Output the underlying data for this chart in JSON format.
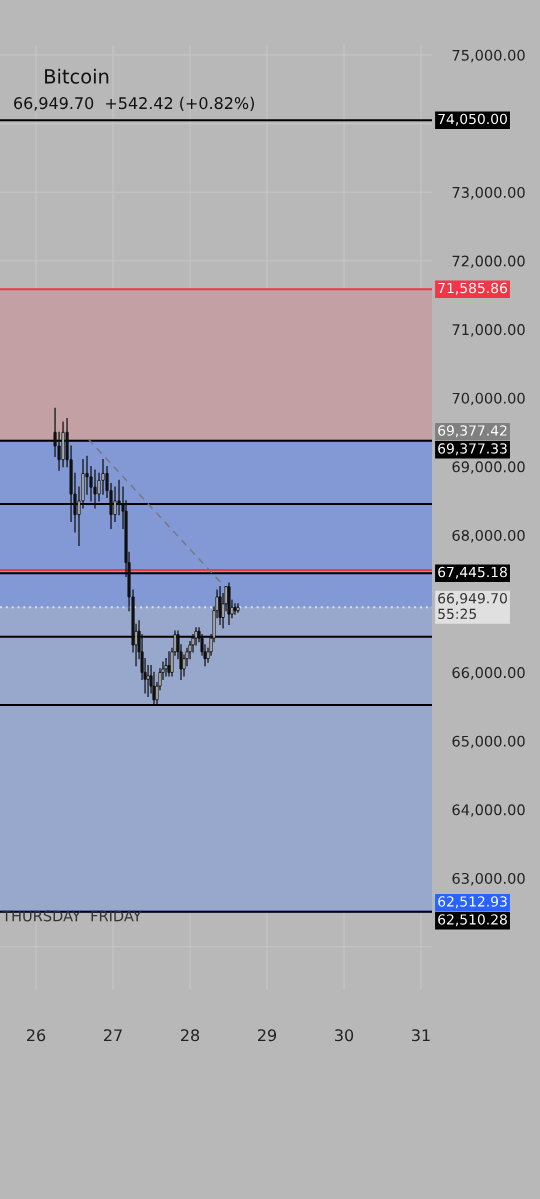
{
  "chart_data": {
    "type": "candlestick",
    "title": "Bitcoin",
    "subtitle": "66,949.70  +542.42 (+0.82%)",
    "x": [
      26.247,
      26.299,
      26.351,
      26.403,
      26.455,
      26.506,
      26.558,
      26.61,
      26.662,
      26.714,
      26.766,
      26.818,
      26.87,
      26.922,
      26.974,
      27.026,
      27.078,
      27.13,
      27.169,
      27.208,
      27.26,
      27.299,
      27.338,
      27.377,
      27.416,
      27.455,
      27.494,
      27.532,
      27.571,
      27.61,
      27.649,
      27.688,
      27.727,
      27.766,
      27.805,
      27.844,
      27.883,
      27.922,
      27.961,
      28.0,
      28.039,
      28.078,
      28.117,
      28.156,
      28.195,
      28.234,
      28.273,
      28.312,
      28.351,
      28.39,
      28.429,
      28.468,
      28.506,
      28.545,
      28.584,
      28.623
    ],
    "ohlc": [
      [
        69500,
        69850,
        69150,
        69300
      ],
      [
        69300,
        69500,
        68950,
        69100
      ],
      [
        69100,
        69650,
        69000,
        69500
      ],
      [
        69500,
        69700,
        69000,
        69100
      ],
      [
        69100,
        69300,
        68200,
        68600
      ],
      [
        68600,
        68900,
        68050,
        68300
      ],
      [
        68300,
        68700,
        67850,
        68500
      ],
      [
        68500,
        69100,
        68400,
        68900
      ],
      [
        68900,
        69150,
        68600,
        68850
      ],
      [
        68850,
        69000,
        68500,
        68700
      ],
      [
        68700,
        68950,
        68400,
        68600
      ],
      [
        68600,
        68900,
        68500,
        68800
      ],
      [
        68800,
        69100,
        68600,
        68900
      ],
      [
        68900,
        69000,
        68550,
        68650
      ],
      [
        68650,
        68750,
        68100,
        68300
      ],
      [
        68300,
        68700,
        68200,
        68500
      ],
      [
        68500,
        68800,
        68300,
        68450
      ],
      [
        68450,
        68700,
        68100,
        68350
      ],
      [
        68350,
        68500,
        67400,
        67600
      ],
      [
        67600,
        67750,
        66900,
        67100
      ],
      [
        67100,
        67200,
        66300,
        66400
      ],
      [
        66400,
        66700,
        66100,
        66600
      ],
      [
        66600,
        66750,
        66200,
        66300
      ],
      [
        66300,
        66550,
        65900,
        66000
      ],
      [
        66000,
        66200,
        65700,
        65900
      ],
      [
        65900,
        66100,
        65650,
        65950
      ],
      [
        65950,
        66100,
        65700,
        65800
      ],
      [
        65800,
        66000,
        65550,
        65600
      ],
      [
        65600,
        65850,
        65550,
        65800
      ],
      [
        65800,
        66050,
        65750,
        66000
      ],
      [
        66000,
        66150,
        65900,
        66050
      ],
      [
        66050,
        66200,
        65950,
        66100
      ],
      [
        66100,
        66300,
        65950,
        66000
      ],
      [
        66000,
        66350,
        65950,
        66300
      ],
      [
        66300,
        66600,
        66250,
        66550
      ],
      [
        66550,
        66600,
        66200,
        66300
      ],
      [
        66300,
        66400,
        65900,
        66050
      ],
      [
        66050,
        66250,
        65950,
        66200
      ],
      [
        66200,
        66350,
        66100,
        66300
      ],
      [
        66300,
        66450,
        66200,
        66400
      ],
      [
        66400,
        66550,
        66300,
        66500
      ],
      [
        66500,
        66650,
        66400,
        66600
      ],
      [
        66600,
        66650,
        66450,
        66500
      ],
      [
        66500,
        66550,
        66250,
        66300
      ],
      [
        66300,
        66400,
        66100,
        66200
      ],
      [
        66200,
        66350,
        66150,
        66300
      ],
      [
        66300,
        66550,
        66250,
        66500
      ],
      [
        66500,
        66950,
        66450,
        66900
      ],
      [
        66900,
        67200,
        66800,
        67100
      ],
      [
        67100,
        67250,
        66700,
        66800
      ],
      [
        66800,
        67150,
        66650,
        67000
      ],
      [
        67000,
        67250,
        66900,
        67250
      ],
      [
        67250,
        67300,
        66700,
        66850
      ],
      [
        66850,
        67050,
        66800,
        66950
      ],
      [
        66950,
        67000,
        66850,
        66900
      ],
      [
        66900,
        67000,
        66880,
        66949.7
      ]
    ],
    "colors": [
      "#111111",
      "#111111",
      "#ffffff",
      "#111111",
      "#111111",
      "#111111",
      "#ffffff",
      "#ffffff",
      "#111111",
      "#111111",
      "#111111",
      "#ffffff",
      "#ffffff",
      "#111111",
      "#111111",
      "#ffffff",
      "#111111",
      "#111111",
      "#111111",
      "#111111",
      "#111111",
      "#ffffff",
      "#111111",
      "#111111",
      "#111111",
      "#ffffff",
      "#111111",
      "#111111",
      "#ffffff",
      "#ffffff",
      "#ffffff",
      "#ffffff",
      "#111111",
      "#ffffff",
      "#ffffff",
      "#111111",
      "#111111",
      "#ffffff",
      "#ffffff",
      "#ffffff",
      "#ffffff",
      "#ffffff",
      "#111111",
      "#111111",
      "#111111",
      "#ffffff",
      "#ffffff",
      "#ffffff",
      "#ffffff",
      "#111111",
      "#ffffff",
      "#ffffff",
      "#111111",
      "#ffffff",
      "#111111",
      "#ffffff"
    ],
    "series": [
      {
        "type": "line",
        "x": [
          26.68,
          28.49
        ],
        "values": [
          69400,
          67200
        ],
        "color": "#777777",
        "line_style": "dashed"
      }
    ],
    "xlim": [
      25.532,
      31.143
    ],
    "xticks": [
      26,
      27,
      28,
      29,
      30,
      31
    ],
    "ylim": [
      61370,
      75146
    ],
    "yticks": [
      {
        "value": 62000,
        "label": null
      },
      {
        "value": 63000,
        "label": "63,000.00"
      },
      {
        "value": 64000,
        "label": "64,000.00"
      },
      {
        "value": 65000,
        "label": "65,000.00"
      },
      {
        "value": 66000,
        "label": "66,000.00"
      },
      {
        "value": 67000,
        "label": null
      },
      {
        "value": 68000,
        "label": "68,000.00"
      },
      {
        "value": 69000,
        "label": "69,000.00"
      },
      {
        "value": 70000,
        "label": "70,000.00"
      },
      {
        "value": 71000,
        "label": "71,000.00"
      },
      {
        "value": 72000,
        "label": "72,000.00"
      },
      {
        "value": 73000,
        "label": "73,000.00"
      },
      {
        "value": 74000,
        "label": null
      },
      {
        "value": 75000,
        "label": "75,000.00"
      }
    ],
    "bands": [
      {
        "axis": "y",
        "from": 69377.42,
        "to": 71585.86,
        "color": "#c3a0a4"
      },
      {
        "axis": "y",
        "from": 62512.93,
        "to": 66949.7,
        "color": "#98a8cc"
      },
      {
        "axis": "y",
        "from": 66949.7,
        "to": 69377.42,
        "color": "#8399d6"
      }
    ],
    "ref_lines": [
      {
        "axis": "y",
        "value": 74050.0,
        "label": "74,050.00",
        "color": "#000000",
        "line_style": "solid"
      },
      {
        "axis": "y",
        "value": 71585.86,
        "label": "71,585.86",
        "color": "#f23645",
        "line_style": "solid"
      },
      {
        "axis": "y",
        "value": 69377.42,
        "label": "69,377.42",
        "color": "#808080",
        "line_style": "solid"
      },
      {
        "axis": "y",
        "value": 69377.33,
        "label": "69,377.33",
        "color": "#000000",
        "line_style": "solid"
      },
      {
        "axis": "y",
        "value": 68455,
        "color": "#000000",
        "line_style": "solid"
      },
      {
        "axis": "y",
        "value": 67493,
        "color": "#f23645",
        "line_style": "solid"
      },
      {
        "axis": "y",
        "value": 67445.18,
        "label": "67,445.18",
        "color": "#000000",
        "line_style": "solid"
      },
      {
        "axis": "y",
        "value": 66949.7,
        "label": "66,949.70\n55:25",
        "color": "#e0e0e0",
        "line_style": "dotted"
      },
      {
        "axis": "y",
        "value": 66520,
        "color": "#000000",
        "line_style": "solid"
      },
      {
        "axis": "y",
        "value": 65525,
        "color": "#000000",
        "line_style": "solid"
      },
      {
        "axis": "y",
        "value": 62512.93,
        "label": "62,512.93",
        "color": "#2962ff",
        "line_style": "solid"
      },
      {
        "axis": "y",
        "value": 62510.28,
        "label": "62,510.28",
        "color": "#000000",
        "line_style": "solid"
      }
    ],
    "annotations": [
      "THURSDAY",
      "FRIDAY"
    ],
    "grid": true
  }
}
